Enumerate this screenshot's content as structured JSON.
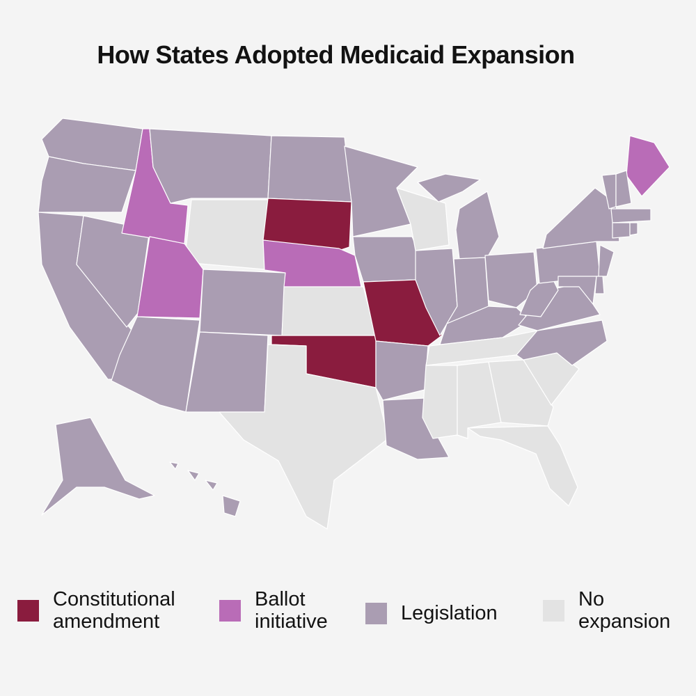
{
  "title": "How States Adopted Medicaid Expansion",
  "colors": {
    "background": "#f4f4f4",
    "constitutional": "#8a1c3e",
    "ballot": "#b96cb7",
    "legislation": "#aa9db2",
    "none": "#e3e3e3"
  },
  "legend": [
    {
      "key": "constitutional",
      "line1": "Constitutional",
      "line2": "amendment"
    },
    {
      "key": "ballot",
      "line1": "Ballot",
      "line2": "initiative"
    },
    {
      "key": "legislation",
      "line1": "Legislation",
      "line2": ""
    },
    {
      "key": "none",
      "line1": "No",
      "line2": "expansion"
    }
  ],
  "states": {
    "WA": "legislation",
    "OR": "legislation",
    "CA": "legislation",
    "NV": "legislation",
    "ID": "ballot",
    "MT": "legislation",
    "WY": "none",
    "UT": "ballot",
    "CO": "legislation",
    "AZ": "legislation",
    "NM": "legislation",
    "ND": "legislation",
    "SD": "constitutional",
    "NE": "ballot",
    "KS": "none",
    "OK": "constitutional",
    "TX": "none",
    "MN": "legislation",
    "IA": "legislation",
    "MO": "constitutional",
    "AR": "legislation",
    "LA": "legislation",
    "WI": "none",
    "IL": "legislation",
    "MI": "legislation",
    "IN": "legislation",
    "OH": "legislation",
    "KY": "legislation",
    "TN": "none",
    "MS": "none",
    "AL": "none",
    "GA": "none",
    "SC": "none",
    "NC": "legislation",
    "FL": "none",
    "VA": "legislation",
    "WV": "legislation",
    "PA": "legislation",
    "NY": "legislation",
    "NJ": "legislation",
    "MD": "legislation",
    "DE": "legislation",
    "ME": "ballot",
    "VT": "legislation",
    "NH": "legislation",
    "MA": "legislation",
    "CT": "legislation",
    "RI": "legislation",
    "AK": "legislation",
    "HI": "legislation"
  }
}
